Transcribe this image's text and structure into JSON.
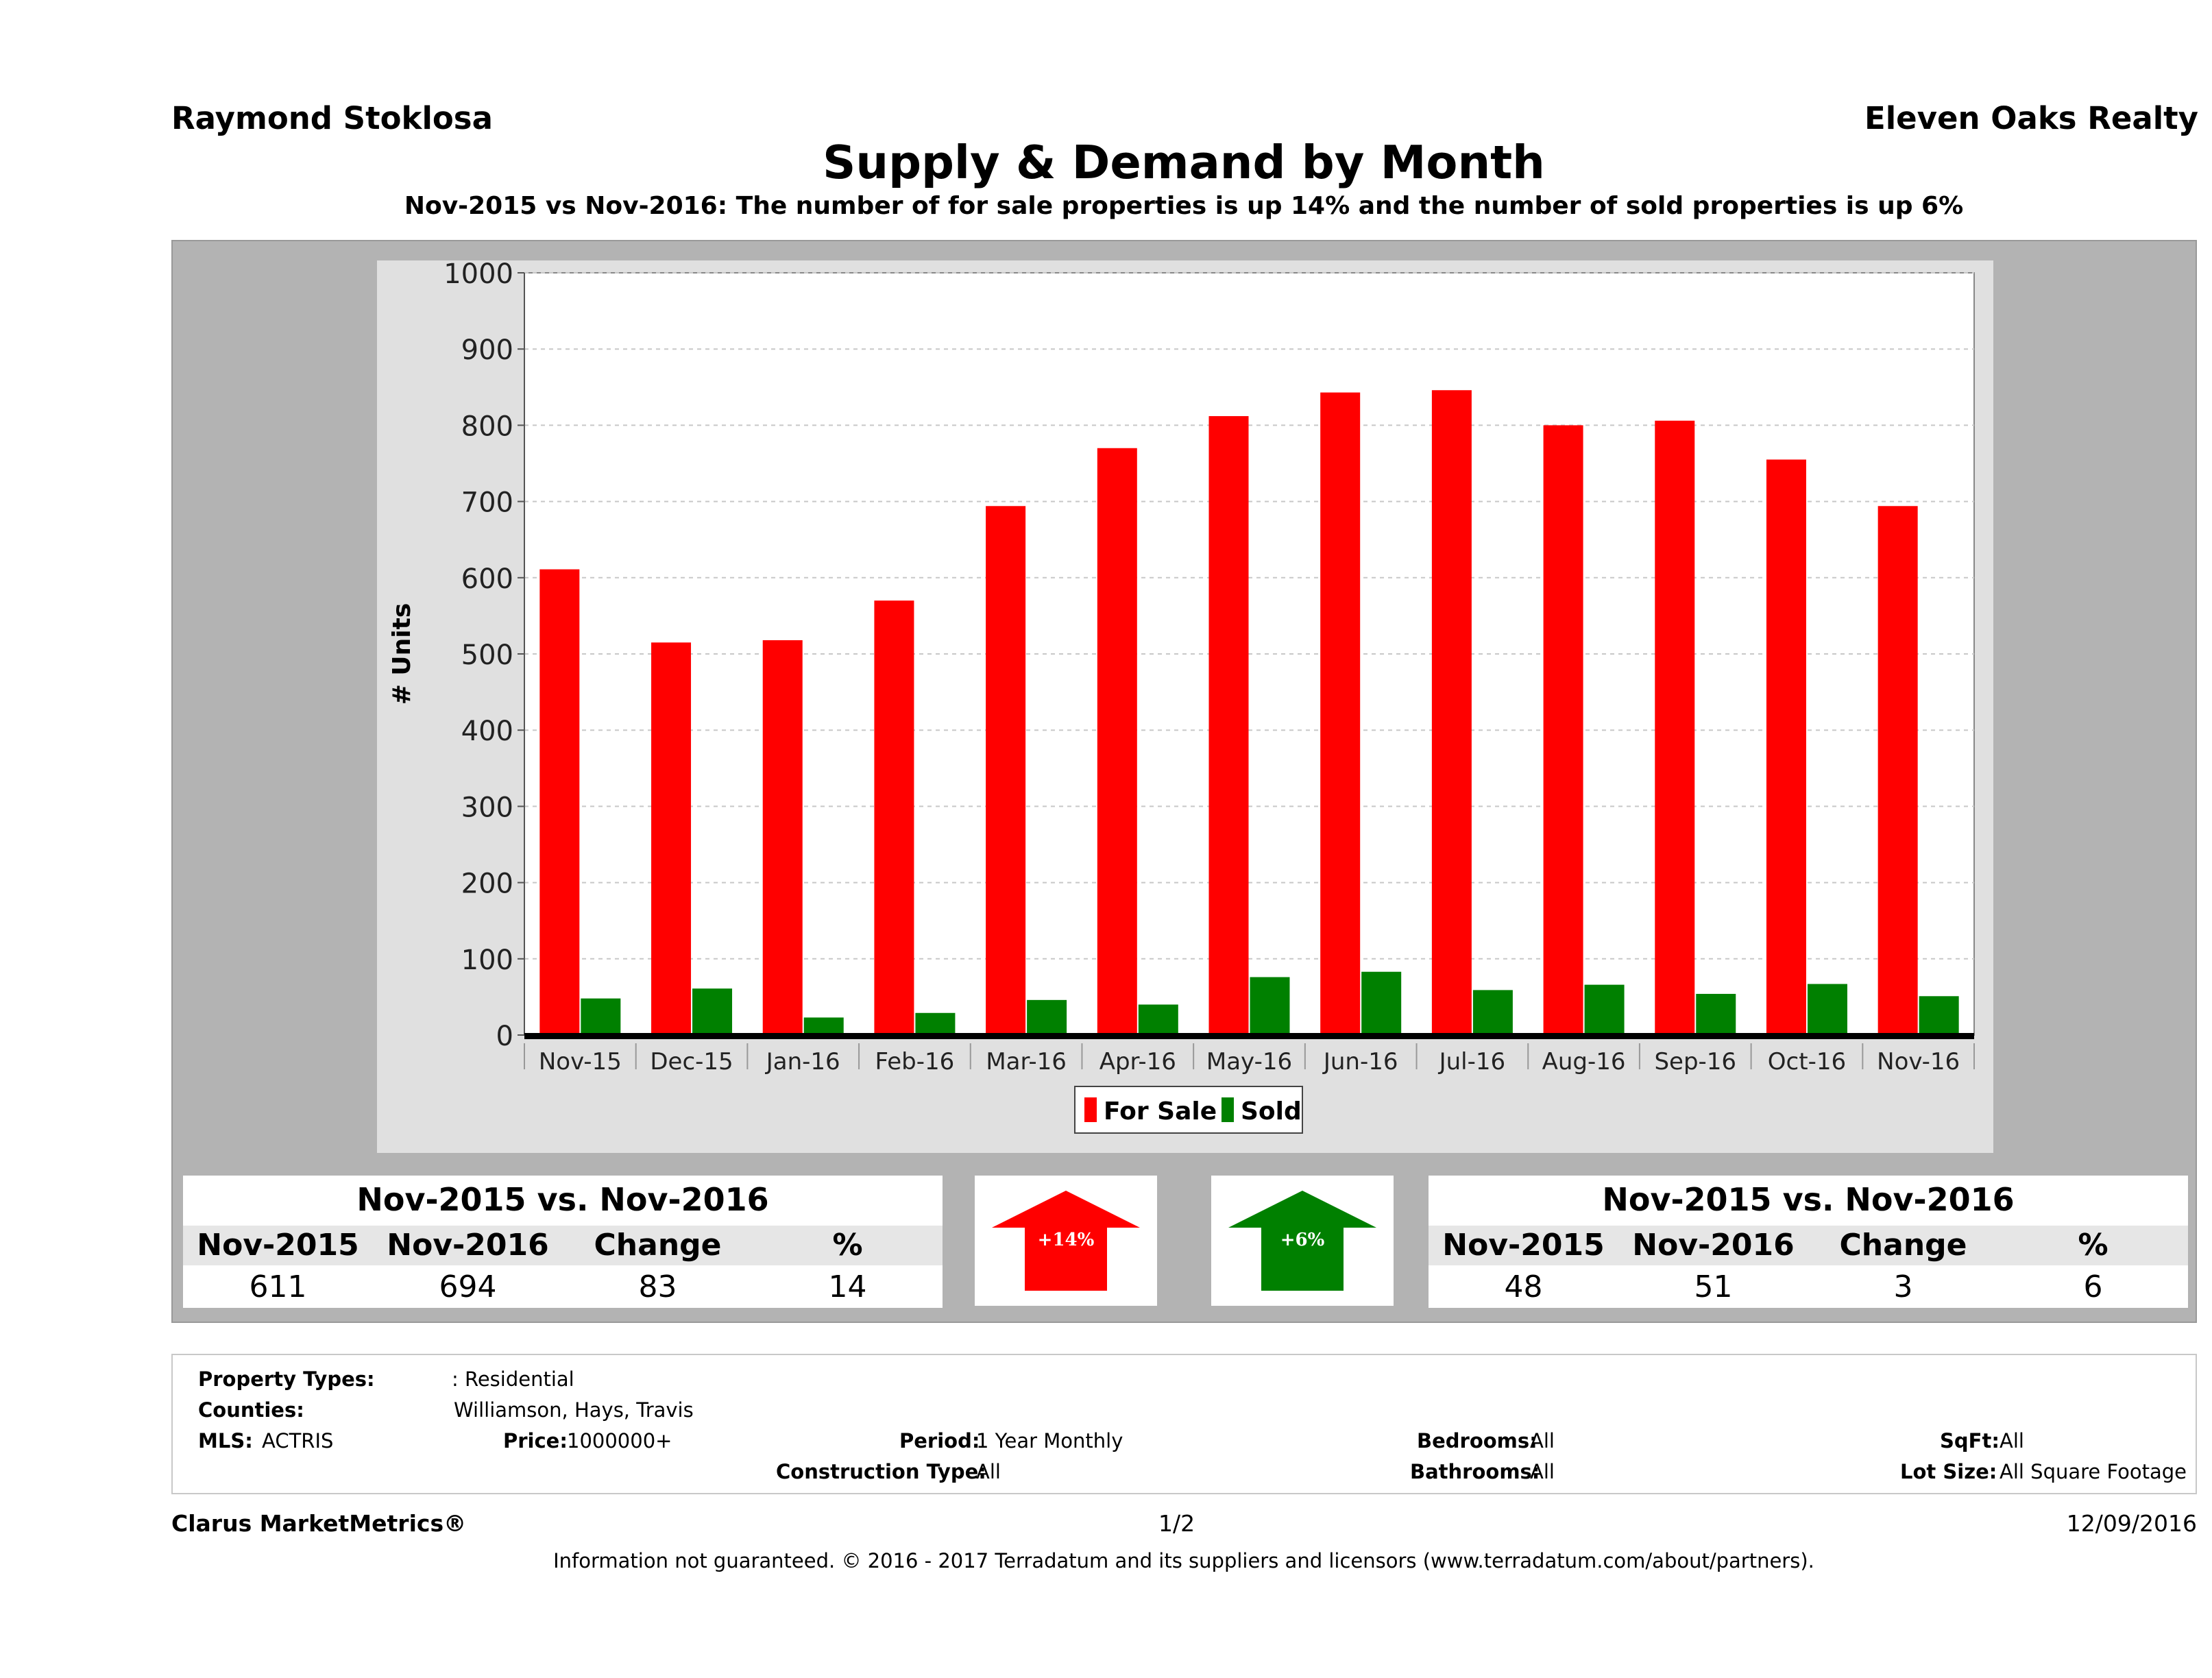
{
  "header": {
    "agent": "Raymond Stoklosa",
    "company": "Eleven Oaks Realty",
    "title": "Supply & Demand by Month",
    "subtitle": "Nov-2015 vs Nov-2016: The number of for sale properties is up 14% and the number of sold properties is up 6%"
  },
  "chart_data": {
    "type": "bar",
    "categories": [
      "Nov-15",
      "Dec-15",
      "Jan-16",
      "Feb-16",
      "Mar-16",
      "Apr-16",
      "May-16",
      "Jun-16",
      "Jul-16",
      "Aug-16",
      "Sep-16",
      "Oct-16",
      "Nov-16"
    ],
    "series": [
      {
        "name": "For Sale",
        "color": "#ff0000",
        "values": [
          611,
          515,
          518,
          570,
          694,
          770,
          812,
          843,
          846,
          800,
          806,
          755,
          694
        ]
      },
      {
        "name": "Sold",
        "color": "#008000",
        "values": [
          48,
          61,
          23,
          29,
          46,
          40,
          76,
          83,
          59,
          66,
          54,
          67,
          51
        ]
      }
    ],
    "ylabel": "# Units",
    "ylim": [
      0,
      1000
    ],
    "yticks": [
      "0",
      "100",
      "200",
      "300",
      "400",
      "500",
      "600",
      "700",
      "800",
      "900",
      "1000"
    ],
    "grid": true,
    "legend": "bottom-center"
  },
  "for_sale_summary": {
    "heading": "Nov-2015 vs. Nov-2016",
    "columns": [
      "Nov-2015",
      "Nov-2016",
      "Change",
      "%"
    ],
    "values": [
      "611",
      "694",
      "83",
      "14"
    ],
    "arrow_label": "+14%",
    "arrow_color": "#ff0000"
  },
  "sold_summary": {
    "heading": "Nov-2015 vs. Nov-2016",
    "columns": [
      "Nov-2015",
      "Nov-2016",
      "Change",
      "%"
    ],
    "values": [
      "48",
      "51",
      "3",
      "6"
    ],
    "arrow_label": "+6%",
    "arrow_color": "#008000"
  },
  "criteria": {
    "property_types_label": "Property Types:",
    "property_types_value": ": Residential",
    "counties_label": "Counties:",
    "counties_value": "Williamson, Hays, Travis",
    "mls_label": "MLS:",
    "mls_value": "ACTRIS",
    "price_label": "Price:",
    "price_value": "1000000+",
    "period_label": "Period:",
    "period_value": "1 Year Monthly",
    "construction_label": "Construction Type:",
    "construction_value": "All",
    "bedrooms_label": "Bedrooms:",
    "bedrooms_value": "All",
    "bathrooms_label": "Bathrooms:",
    "bathrooms_value": "All",
    "sqft_label": "SqFt:",
    "sqft_value": "All",
    "lotsize_label": "Lot Size:",
    "lotsize_value": "All Square Footage"
  },
  "footer": {
    "brand": "Clarus MarketMetrics®",
    "page": "1/2",
    "date": "12/09/2016",
    "disclaimer": "Information not guaranteed. © 2016 - 2017 Terradatum and its suppliers and licensors (www.terradatum.com/about/partners)."
  }
}
